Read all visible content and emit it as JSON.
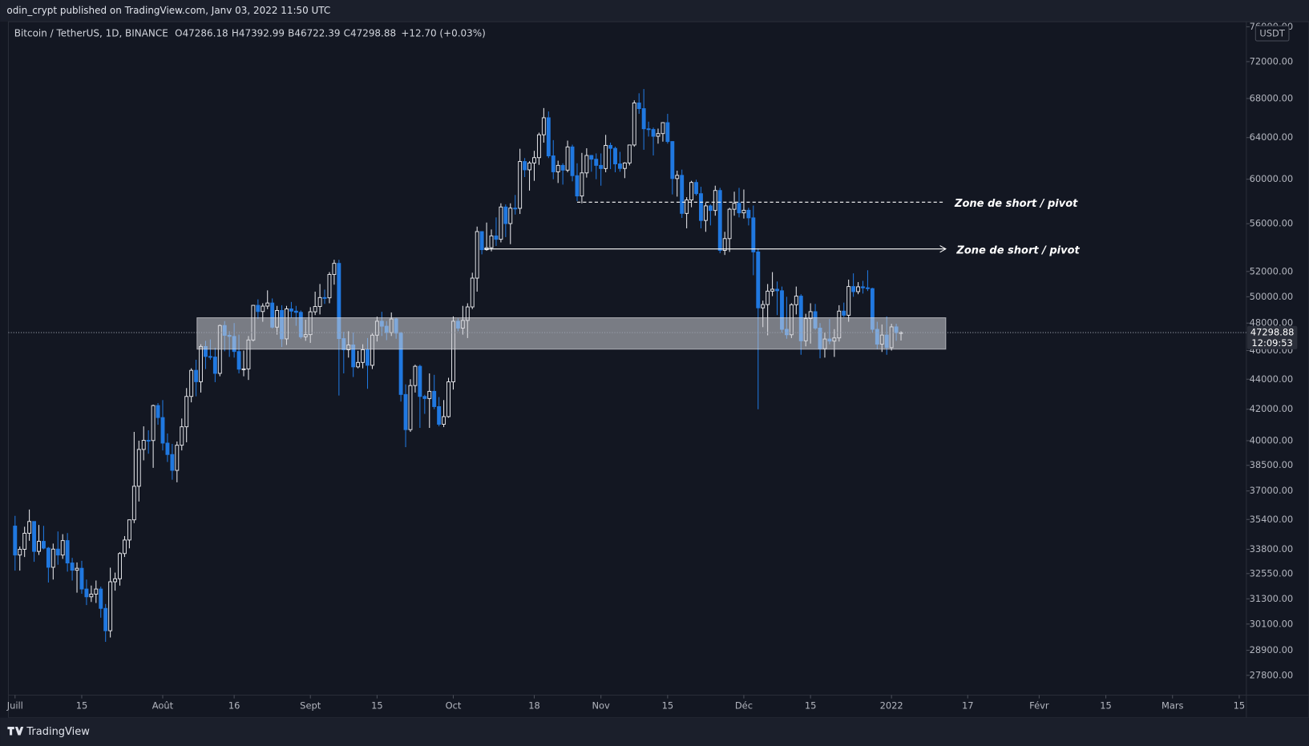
{
  "header": {
    "publisher": "odin_crypt published on TradingView.com, Janv 03, 2022 11:50 UTC"
  },
  "chart_data": {
    "type": "candlestick",
    "symbol": "Bitcoin / TetherUS, 1D, BINANCE",
    "ohlc_prefixes": [
      "O",
      "H",
      "B",
      "C"
    ],
    "change": "+12.70 (+0.03%)",
    "currency": "USDT",
    "countdown": "12:09:53",
    "up_color": "#e8e9ed",
    "down_color": "#2078e0",
    "log_scale": true,
    "grid": false,
    "open": [
      35040,
      33500,
      33800,
      34650,
      35290,
      33690,
      34220,
      33860,
      32870,
      33810,
      33500,
      34260,
      33090,
      32720,
      32820,
      31780,
      31400,
      31530,
      31780,
      30840,
      29790,
      32140,
      32290,
      33580,
      34290,
      35380,
      37270,
      39460,
      40020,
      40010,
      42240,
      41460,
      39850,
      39150,
      38200,
      39720,
      40870,
      42840,
      44610,
      43830,
      46290,
      45580,
      45540,
      44400,
      47820,
      47100,
      47020,
      45930,
      44690,
      44710,
      46760,
      49340,
      48870,
      49280,
      49520,
      47700,
      48950,
      46840,
      49070,
      48900,
      48810,
      46990,
      47150,
      48850,
      49250,
      49940,
      49920,
      51760,
      52660,
      46860,
      46060,
      46400,
      44850,
      45160,
      46060,
      44960,
      47110,
      48140,
      47770,
      47300,
      48310,
      47260,
      42970,
      40690,
      43570,
      44890,
      42840,
      42700,
      43180,
      42170,
      41030,
      41520,
      43820,
      48140,
      47630,
      48200,
      49220,
      51470,
      55320,
      53790,
      53950,
      54950,
      54660,
      57470,
      56010,
      57370,
      57350,
      61670,
      60880,
      61530,
      62040,
      64280,
      66000,
      62210,
      60690,
      61300,
      60850,
      63080,
      60330,
      58460,
      60590,
      62250,
      61890,
      61300,
      61000,
      63230,
      62940,
      61440,
      61010,
      61530,
      63270,
      67530,
      66940,
      64880,
      64810,
      64130,
      64400,
      65500,
      63610,
      60060,
      60360,
      56900,
      58100,
      59700,
      58670,
      56280,
      57570,
      57160,
      58960,
      53730,
      54720,
      57270,
      57800,
      56950,
      57180,
      56510,
      53600,
      49150,
      49400,
      50440,
      50590,
      50470,
      47540,
      47140,
      49390,
      50050,
      46700,
      48340,
      48860,
      47630,
      46130,
      46830,
      46680,
      46910,
      48900,
      48590,
      50800,
      50400,
      50780,
      50700,
      50640,
      47540,
      46460,
      47120,
      46210,
      47720,
      47286.18
    ],
    "high": [
      35600,
      33950,
      35000,
      35950,
      35300,
      35100,
      35050,
      33920,
      34100,
      34750,
      34600,
      34660,
      33350,
      33120,
      33200,
      32250,
      31950,
      32200,
      31900,
      31050,
      32850,
      32600,
      33650,
      34500,
      35400,
      40550,
      40000,
      40900,
      40650,
      42300,
      42400,
      42600,
      40450,
      39800,
      39950,
      41400,
      43400,
      44750,
      45350,
      46450,
      46700,
      46800,
      46200,
      47900,
      48150,
      47400,
      48000,
      47150,
      46000,
      47050,
      49380,
      49800,
      49500,
      50500,
      49870,
      49300,
      49350,
      49300,
      49600,
      49300,
      48950,
      48250,
      49200,
      50400,
      51000,
      50560,
      51950,
      52950,
      52950,
      47350,
      47400,
      47300,
      45980,
      46450,
      46900,
      47250,
      48480,
      48850,
      48150,
      48800,
      48400,
      47350,
      43650,
      44000,
      45000,
      45000,
      42950,
      44400,
      44300,
      42800,
      42600,
      44100,
      48500,
      48350,
      49300,
      49500,
      51900,
      55750,
      55350,
      56100,
      55500,
      56550,
      57800,
      57700,
      57800,
      58550,
      62900,
      62000,
      61700,
      62700,
      64490,
      67000,
      66650,
      63750,
      61750,
      61500,
      63700,
      63300,
      61500,
      62500,
      62950,
      62300,
      62450,
      62450,
      64270,
      63500,
      63100,
      62600,
      61600,
      63300,
      67800,
      68550,
      69000,
      65600,
      65000,
      64900,
      65550,
      66400,
      63650,
      60800,
      60900,
      58350,
      59850,
      59950,
      59300,
      57850,
      57700,
      59400,
      59200,
      55300,
      57400,
      58850,
      59200,
      59050,
      57400,
      57600,
      53900,
      49700,
      51000,
      51950,
      51200,
      50800,
      50000,
      49500,
      50800,
      50200,
      48700,
      49500,
      49450,
      48000,
      47300,
      48300,
      47550,
      49350,
      49550,
      51350,
      51850,
      51150,
      51250,
      52100,
      50700,
      48100,
      47900,
      48500,
      47950,
      47950,
      47392.99
    ],
    "low": [
      32700,
      32700,
      33400,
      34250,
      33150,
      33500,
      33800,
      32100,
      32250,
      33000,
      33300,
      32650,
      32200,
      31600,
      31550,
      31000,
      31150,
      31100,
      30400,
      29280,
      29480,
      31700,
      31950,
      33400,
      33850,
      35200,
      36400,
      38800,
      39200,
      38350,
      41000,
      39400,
      38700,
      37650,
      37500,
      39400,
      39900,
      42450,
      42850,
      43100,
      44700,
      45350,
      43800,
      44200,
      45950,
      45550,
      45500,
      44400,
      44200,
      43950,
      46650,
      48300,
      48100,
      49050,
      47600,
      47150,
      46250,
      46400,
      48400,
      47800,
      46850,
      46700,
      46550,
      48600,
      48650,
      49450,
      49500,
      50950,
      42900,
      44400,
      45500,
      44150,
      44750,
      44750,
      43350,
      44700,
      46650,
      47050,
      46750,
      47050,
      46850,
      42500,
      39600,
      40550,
      43100,
      40800,
      41700,
      40800,
      42000,
      40900,
      40850,
      41450,
      43300,
      47400,
      47150,
      46900,
      49050,
      50400,
      53400,
      53700,
      53650,
      54100,
      54400,
      54850,
      54250,
      56800,
      56850,
      60200,
      58950,
      59850,
      61350,
      63500,
      62000,
      60000,
      59650,
      59500,
      60650,
      59800,
      58000,
      57800,
      60150,
      60700,
      60000,
      59400,
      60650,
      60950,
      60650,
      60700,
      60100,
      61300,
      63100,
      66400,
      62800,
      64100,
      62250,
      63400,
      63600,
      63400,
      58600,
      58400,
      56500,
      55600,
      57450,
      58500,
      55600,
      55300,
      55850,
      56700,
      53500,
      53350,
      53600,
      56700,
      56550,
      56450,
      55850,
      51700,
      42000,
      47700,
      47100,
      50050,
      48600,
      47300,
      46850,
      46900,
      48650,
      45700,
      46300,
      46500,
      47500,
      45450,
      45500,
      46450,
      45550,
      46650,
      48450,
      48100,
      50000,
      50200,
      50250,
      50450,
      47300,
      46100,
      45900,
      45700,
      46000,
      46700,
      46722.39
    ],
    "close": [
      33500,
      33800,
      34650,
      35290,
      33690,
      34220,
      33860,
      32870,
      33810,
      33500,
      34260,
      33090,
      32720,
      32820,
      31780,
      31400,
      31530,
      31780,
      30840,
      29790,
      32140,
      32290,
      33580,
      34290,
      35380,
      37270,
      39460,
      40020,
      40010,
      42240,
      41460,
      39850,
      39150,
      38200,
      39720,
      40870,
      42840,
      44610,
      43830,
      46290,
      45580,
      45540,
      44400,
      47820,
      47100,
      47020,
      45930,
      44690,
      44710,
      46760,
      49340,
      48870,
      49280,
      49520,
      47700,
      48950,
      46840,
      49070,
      48900,
      48810,
      46990,
      47150,
      48850,
      49250,
      49940,
      49920,
      51760,
      52660,
      46860,
      46060,
      46400,
      44850,
      45160,
      46060,
      44960,
      47110,
      48140,
      47770,
      47300,
      48310,
      47260,
      42970,
      40690,
      43570,
      44890,
      42840,
      42700,
      43180,
      42170,
      41030,
      41520,
      43820,
      48140,
      47630,
      48200,
      49220,
      51470,
      55320,
      53790,
      53950,
      54950,
      54660,
      57470,
      56010,
      57370,
      57350,
      61670,
      60880,
      61530,
      62040,
      64280,
      66000,
      62210,
      60690,
      61300,
      60850,
      63080,
      60330,
      58460,
      60590,
      62250,
      61890,
      61300,
      61000,
      63230,
      62940,
      61440,
      61010,
      61530,
      63270,
      67530,
      66940,
      64880,
      64810,
      64130,
      64400,
      65500,
      63610,
      60060,
      60360,
      56900,
      58100,
      59700,
      58670,
      56280,
      57570,
      57160,
      58960,
      53730,
      54720,
      57270,
      57800,
      56950,
      57180,
      56510,
      53600,
      49150,
      49400,
      50440,
      50590,
      50470,
      47540,
      47140,
      49390,
      50050,
      46700,
      48340,
      48860,
      47630,
      46130,
      46830,
      46680,
      46910,
      48900,
      48590,
      50800,
      50400,
      50780,
      50700,
      50640,
      47540,
      46460,
      47120,
      46210,
      47720,
      47286.18,
      47298.88
    ],
    "ylim": [
      26960,
      76600
    ],
    "yticks": [
      {
        "value": 76000,
        "label": "76000.00"
      },
      {
        "value": 72000,
        "label": "72000.00"
      },
      {
        "value": 68000,
        "label": "68000.00"
      },
      {
        "value": 64000,
        "label": "64000.00"
      },
      {
        "value": 60000,
        "label": "60000.00"
      },
      {
        "value": 56000,
        "label": "56000.00"
      },
      {
        "value": 52000,
        "label": "52000.00"
      },
      {
        "value": 50000,
        "label": "50000.00"
      },
      {
        "value": 48000,
        "label": "48000.00"
      },
      {
        "value": 46000,
        "label": "46000.00"
      },
      {
        "value": 44000,
        "label": "44000.00"
      },
      {
        "value": 42000,
        "label": "42000.00"
      },
      {
        "value": 40000,
        "label": "40000.00"
      },
      {
        "value": 38500,
        "label": "38500.00"
      },
      {
        "value": 37000,
        "label": "37000.00"
      },
      {
        "value": 35400,
        "label": "35400.00"
      },
      {
        "value": 33800,
        "label": "33800.00"
      },
      {
        "value": 32550,
        "label": "32550.00"
      },
      {
        "value": 31300,
        "label": "31300.00"
      },
      {
        "value": 30100,
        "label": "30100.00"
      },
      {
        "value": 28900,
        "label": "28900.00"
      },
      {
        "value": 27800,
        "label": "27800.00"
      }
    ],
    "xlim": [
      -1.4,
      258.5
    ],
    "xticks": [
      {
        "value": 0,
        "label": "Juill"
      },
      {
        "value": 14,
        "label": "15"
      },
      {
        "value": 31,
        "label": "Août"
      },
      {
        "value": 46,
        "label": "16"
      },
      {
        "value": 62,
        "label": "Sept"
      },
      {
        "value": 76,
        "label": "15"
      },
      {
        "value": 92,
        "label": "Oct"
      },
      {
        "value": 109,
        "label": "18"
      },
      {
        "value": 123,
        "label": "Nov"
      },
      {
        "value": 137,
        "label": "15"
      },
      {
        "value": 153,
        "label": "Déc"
      },
      {
        "value": 167,
        "label": "15"
      },
      {
        "value": 184,
        "label": "2022"
      },
      {
        "value": 200,
        "label": "17"
      },
      {
        "value": 215,
        "label": "Févr"
      },
      {
        "value": 229,
        "label": "15"
      },
      {
        "value": 243,
        "label": "Mars"
      },
      {
        "value": 257,
        "label": "15"
      }
    ],
    "zone": {
      "from": 38.2,
      "to": 195.4,
      "low": 46100,
      "high": 48400
    },
    "levels": [
      {
        "value": 57900,
        "from": 118,
        "to": 195,
        "style": "dashed",
        "label": "Zone de short / pivot"
      },
      {
        "value": 53850,
        "from": 98.5,
        "to": 195.4,
        "style": "arrow",
        "label": "Zone de short / pivot"
      }
    ]
  },
  "footer": {
    "brand": "TradingView"
  }
}
